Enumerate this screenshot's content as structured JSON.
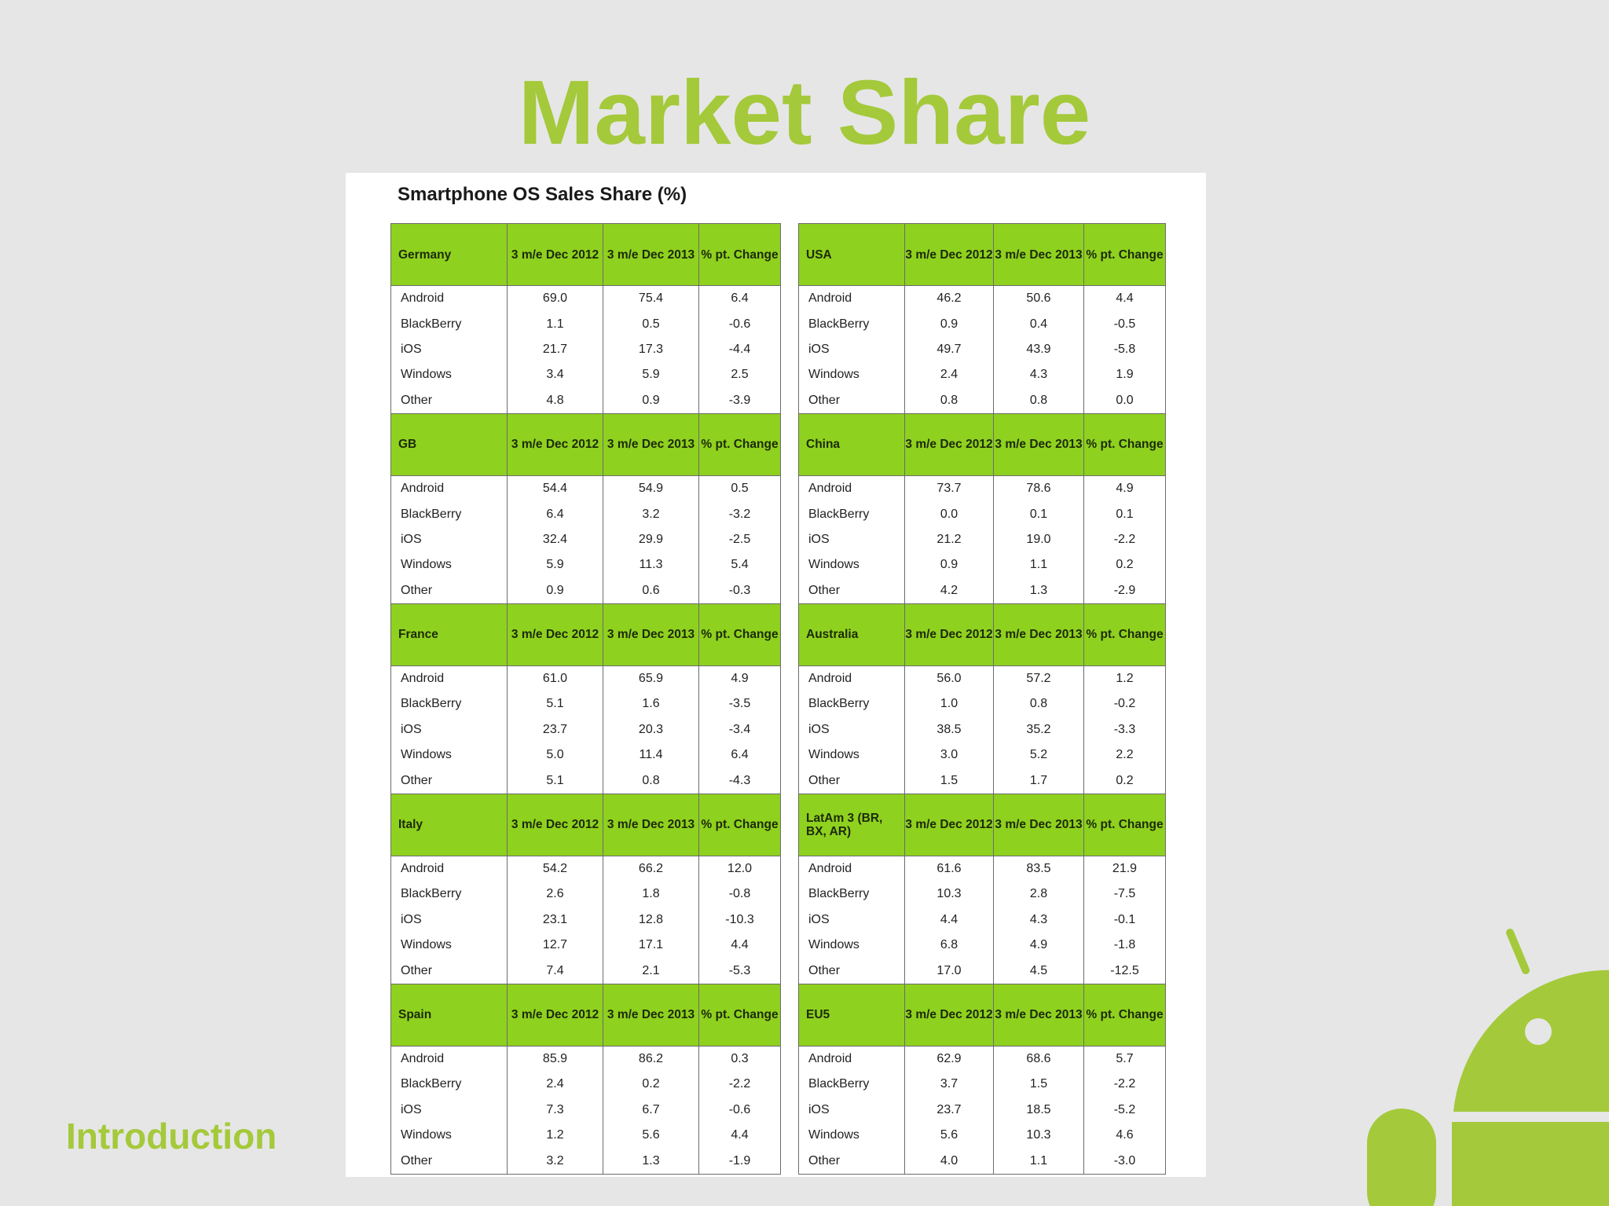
{
  "slide": {
    "title": "Market Share",
    "footer_label": "Introduction"
  },
  "panel": {
    "title": "Smartphone OS Sales Share (%)"
  },
  "colors": {
    "accent": "#a4c93a",
    "header_fill": "#8fd11f",
    "background": "#e6e6e6"
  },
  "logo": {
    "icon": "android-robot-icon"
  },
  "table_headers": {
    "col1": "3 m/e Dec 2012",
    "col2": "3 m/e Dec 2013",
    "col3": "% pt. Change"
  },
  "left_column": [
    {
      "region": "Germany",
      "rows": [
        [
          "Android",
          "69.0",
          "75.4",
          "6.4"
        ],
        [
          "BlackBerry",
          "1.1",
          "0.5",
          "-0.6"
        ],
        [
          "iOS",
          "21.7",
          "17.3",
          "-4.4"
        ],
        [
          "Windows",
          "3.4",
          "5.9",
          "2.5"
        ],
        [
          "Other",
          "4.8",
          "0.9",
          "-3.9"
        ]
      ]
    },
    {
      "region": "GB",
      "rows": [
        [
          "Android",
          "54.4",
          "54.9",
          "0.5"
        ],
        [
          "BlackBerry",
          "6.4",
          "3.2",
          "-3.2"
        ],
        [
          "iOS",
          "32.4",
          "29.9",
          "-2.5"
        ],
        [
          "Windows",
          "5.9",
          "11.3",
          "5.4"
        ],
        [
          "Other",
          "0.9",
          "0.6",
          "-0.3"
        ]
      ]
    },
    {
      "region": "France",
      "rows": [
        [
          "Android",
          "61.0",
          "65.9",
          "4.9"
        ],
        [
          "BlackBerry",
          "5.1",
          "1.6",
          "-3.5"
        ],
        [
          "iOS",
          "23.7",
          "20.3",
          "-3.4"
        ],
        [
          "Windows",
          "5.0",
          "11.4",
          "6.4"
        ],
        [
          "Other",
          "5.1",
          "0.8",
          "-4.3"
        ]
      ]
    },
    {
      "region": "Italy",
      "rows": [
        [
          "Android",
          "54.2",
          "66.2",
          "12.0"
        ],
        [
          "BlackBerry",
          "2.6",
          "1.8",
          "-0.8"
        ],
        [
          "iOS",
          "23.1",
          "12.8",
          "-10.3"
        ],
        [
          "Windows",
          "12.7",
          "17.1",
          "4.4"
        ],
        [
          "Other",
          "7.4",
          "2.1",
          "-5.3"
        ]
      ]
    },
    {
      "region": "Spain",
      "rows": [
        [
          "Android",
          "85.9",
          "86.2",
          "0.3"
        ],
        [
          "BlackBerry",
          "2.4",
          "0.2",
          "-2.2"
        ],
        [
          "iOS",
          "7.3",
          "6.7",
          "-0.6"
        ],
        [
          "Windows",
          "1.2",
          "5.6",
          "4.4"
        ],
        [
          "Other",
          "3.2",
          "1.3",
          "-1.9"
        ]
      ]
    }
  ],
  "right_column": [
    {
      "region": "USA",
      "rows": [
        [
          "Android",
          "46.2",
          "50.6",
          "4.4"
        ],
        [
          "BlackBerry",
          "0.9",
          "0.4",
          "-0.5"
        ],
        [
          "iOS",
          "49.7",
          "43.9",
          "-5.8"
        ],
        [
          "Windows",
          "2.4",
          "4.3",
          "1.9"
        ],
        [
          "Other",
          "0.8",
          "0.8",
          "0.0"
        ]
      ]
    },
    {
      "region": "China",
      "rows": [
        [
          "Android",
          "73.7",
          "78.6",
          "4.9"
        ],
        [
          "BlackBerry",
          "0.0",
          "0.1",
          "0.1"
        ],
        [
          "iOS",
          "21.2",
          "19.0",
          "-2.2"
        ],
        [
          "Windows",
          "0.9",
          "1.1",
          "0.2"
        ],
        [
          "Other",
          "4.2",
          "1.3",
          "-2.9"
        ]
      ]
    },
    {
      "region": "Australia",
      "rows": [
        [
          "Android",
          "56.0",
          "57.2",
          "1.2"
        ],
        [
          "BlackBerry",
          "1.0",
          "0.8",
          "-0.2"
        ],
        [
          "iOS",
          "38.5",
          "35.2",
          "-3.3"
        ],
        [
          "Windows",
          "3.0",
          "5.2",
          "2.2"
        ],
        [
          "Other",
          "1.5",
          "1.7",
          "0.2"
        ]
      ]
    },
    {
      "region": "LatAm 3 (BR, BX, AR)",
      "rows": [
        [
          "Android",
          "61.6",
          "83.5",
          "21.9"
        ],
        [
          "BlackBerry",
          "10.3",
          "2.8",
          "-7.5"
        ],
        [
          "iOS",
          "4.4",
          "4.3",
          "-0.1"
        ],
        [
          "Windows",
          "6.8",
          "4.9",
          "-1.8"
        ],
        [
          "Other",
          "17.0",
          "4.5",
          "-12.5"
        ]
      ]
    },
    {
      "region": "EU5",
      "rows": [
        [
          "Android",
          "62.9",
          "68.6",
          "5.7"
        ],
        [
          "BlackBerry",
          "3.7",
          "1.5",
          "-2.2"
        ],
        [
          "iOS",
          "23.7",
          "18.5",
          "-5.2"
        ],
        [
          "Windows",
          "5.6",
          "10.3",
          "4.6"
        ],
        [
          "Other",
          "4.0",
          "1.1",
          "-3.0"
        ]
      ]
    }
  ]
}
